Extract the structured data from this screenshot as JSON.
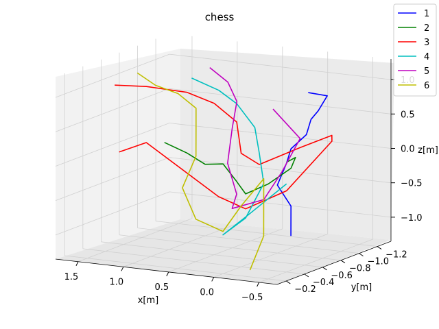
{
  "chart_data": {
    "type": "line",
    "projection": "3d",
    "title": "chess",
    "xlabel": "x[m]",
    "ylabel": "y[m]",
    "zlabel": "z[m]",
    "xlim": [
      -0.7,
      1.75
    ],
    "ylim": [
      -0.1,
      -1.35
    ],
    "zlim": [
      -1.35,
      1.3
    ],
    "x_ticks": [
      -0.5,
      0.0,
      0.5,
      1.0,
      1.5
    ],
    "x_tick_labels": [
      "−0.5",
      "0.0",
      "0.5",
      "1.0",
      "1.5"
    ],
    "y_ticks": [
      -0.2,
      -0.4,
      -0.6,
      -0.8,
      -1.0,
      -1.2
    ],
    "y_tick_labels": [
      "−0.2",
      "−0.4",
      "−0.6",
      "−0.8",
      "−1.0",
      "−1.2"
    ],
    "z_ticks": [
      -1.0,
      -0.5,
      0.0,
      0.5,
      1.0
    ],
    "z_tick_labels": [
      "−1.0",
      "−0.5",
      "0.0",
      "0.5",
      "1.0"
    ],
    "grid": true,
    "legend_position": "top-right",
    "series": [
      {
        "name": "1",
        "color": "#0000ff",
        "points": [
          [
            -0.52,
            -0.62,
            1.15
          ],
          [
            -0.6,
            -0.75,
            1.05
          ],
          [
            -0.55,
            -0.7,
            0.85
          ],
          [
            -0.45,
            -0.72,
            0.7
          ],
          [
            -0.52,
            -0.6,
            0.55
          ],
          [
            -0.4,
            -0.55,
            0.35
          ],
          [
            -0.3,
            -0.6,
            0.1
          ],
          [
            -0.25,
            -0.55,
            -0.2
          ],
          [
            -0.45,
            -0.5,
            -0.45
          ],
          [
            -0.5,
            -0.45,
            -0.85
          ]
        ]
      },
      {
        "name": "2",
        "color": "#008000",
        "points": [
          [
            1.05,
            -0.6,
            0.2
          ],
          [
            0.85,
            -0.65,
            0.05
          ],
          [
            0.6,
            -0.6,
            -0.05
          ],
          [
            0.3,
            -0.5,
            0.05
          ],
          [
            0.1,
            -0.45,
            -0.15
          ],
          [
            -0.1,
            -0.35,
            -0.25
          ],
          [
            -0.3,
            -0.4,
            -0.1
          ],
          [
            -0.45,
            -0.5,
            0.1
          ],
          [
            -0.4,
            -0.6,
            0.2
          ],
          [
            -0.2,
            -0.7,
            0.05
          ]
        ]
      },
      {
        "name": "3",
        "color": "#ff0000",
        "points": [
          [
            1.6,
            -0.6,
            0.95
          ],
          [
            1.3,
            -0.65,
            0.95
          ],
          [
            0.9,
            -0.7,
            0.9
          ],
          [
            0.5,
            -0.6,
            0.85
          ],
          [
            0.2,
            -0.55,
            0.65
          ],
          [
            0.0,
            -0.4,
            0.3
          ],
          [
            -0.25,
            -0.35,
            0.2
          ],
          [
            -0.45,
            -0.6,
            0.35
          ],
          [
            -0.6,
            -0.8,
            0.45
          ],
          [
            -0.5,
            -0.9,
            0.3
          ],
          [
            -0.3,
            -0.6,
            -0.3
          ],
          [
            -0.05,
            -0.4,
            -0.5
          ],
          [
            0.3,
            -0.45,
            -0.4
          ],
          [
            1.2,
            -0.55,
            0.2
          ],
          [
            1.45,
            -0.5,
            0.05
          ]
        ]
      },
      {
        "name": "4",
        "color": "#00bfbf",
        "points": [
          [
            0.95,
            -0.8,
            1.05
          ],
          [
            0.6,
            -0.75,
            0.95
          ],
          [
            0.3,
            -0.65,
            0.85
          ],
          [
            0.0,
            -0.55,
            0.6
          ],
          [
            -0.15,
            -0.45,
            0.3
          ],
          [
            -0.25,
            -0.4,
            -0.1
          ],
          [
            -0.1,
            -0.35,
            -0.6
          ],
          [
            0.1,
            -0.3,
            -0.85
          ],
          [
            0.0,
            -0.45,
            -0.65
          ],
          [
            -0.3,
            -0.6,
            -0.2
          ]
        ]
      },
      {
        "name": "5",
        "color": "#bf00bf",
        "points": [
          [
            0.8,
            -0.85,
            1.2
          ],
          [
            0.55,
            -0.8,
            1.05
          ],
          [
            0.35,
            -0.7,
            0.85
          ],
          [
            0.25,
            -0.55,
            0.55
          ],
          [
            0.2,
            -0.45,
            0.1
          ],
          [
            0.05,
            -0.4,
            -0.3
          ],
          [
            0.15,
            -0.45,
            -0.55
          ],
          [
            -0.15,
            -0.5,
            -0.4
          ],
          [
            -0.3,
            -0.55,
            0.0
          ],
          [
            -0.4,
            -0.65,
            0.45
          ],
          [
            -0.05,
            -0.7,
            0.8
          ]
        ]
      },
      {
        "name": "6",
        "color": "#bfbf00",
        "points": [
          [
            1.45,
            -0.7,
            1.1
          ],
          [
            1.25,
            -0.7,
            0.95
          ],
          [
            0.95,
            -0.65,
            0.9
          ],
          [
            0.7,
            -0.6,
            0.75
          ],
          [
            0.65,
            -0.55,
            0.5
          ],
          [
            0.55,
            -0.45,
            0.15
          ],
          [
            0.65,
            -0.4,
            -0.3
          ],
          [
            0.45,
            -0.35,
            -0.7
          ],
          [
            0.1,
            -0.3,
            -0.8
          ],
          [
            -0.1,
            -0.3,
            -0.4
          ],
          [
            -0.3,
            -0.35,
            0.0
          ],
          [
            -0.35,
            -0.3,
            -0.8
          ],
          [
            -0.3,
            -0.2,
            -1.25
          ]
        ]
      }
    ]
  }
}
